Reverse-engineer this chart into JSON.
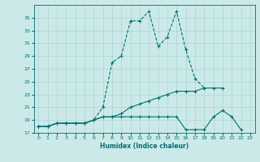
{
  "title": "",
  "xlabel": "Humidex (Indice chaleur)",
  "bg_color": "#cce9e9",
  "grid_color": "#aad4d4",
  "line_color": "#007070",
  "ylim": [
    17,
    37
  ],
  "xlim": [
    -0.5,
    23.5
  ],
  "yticks": [
    17,
    19,
    21,
    23,
    25,
    27,
    29,
    31,
    33,
    35
  ],
  "xticks": [
    0,
    1,
    2,
    3,
    4,
    5,
    6,
    7,
    8,
    9,
    10,
    11,
    12,
    13,
    14,
    15,
    16,
    17,
    18,
    19,
    20,
    21,
    22,
    23
  ],
  "series": [
    {
      "x": [
        0,
        1,
        2,
        3,
        4,
        5,
        6,
        7,
        8,
        9,
        10,
        11,
        12,
        13,
        14,
        15,
        16,
        17,
        18
      ],
      "y": [
        18.0,
        18.0,
        18.5,
        18.5,
        18.5,
        18.5,
        19.0,
        21.0,
        28.0,
        29.0,
        34.5,
        34.5,
        36.0,
        30.5,
        32.0,
        36.0,
        30.0,
        25.5,
        24.0
      ],
      "style": "--",
      "lw": 0.8
    },
    {
      "x": [
        0,
        1,
        2,
        3,
        4,
        5,
        6,
        7,
        8,
        9,
        10,
        11,
        12,
        13,
        14,
        15,
        16,
        17,
        18,
        19,
        20
      ],
      "y": [
        18.0,
        18.0,
        18.5,
        18.5,
        18.5,
        18.5,
        19.0,
        19.5,
        19.5,
        20.0,
        21.0,
        21.5,
        22.0,
        22.5,
        23.0,
        23.5,
        23.5,
        23.5,
        24.0,
        24.0,
        24.0
      ],
      "style": "-",
      "lw": 0.8
    },
    {
      "x": [
        0,
        1,
        2,
        3,
        4,
        5,
        6,
        7,
        8,
        9,
        10,
        11,
        12,
        13,
        14,
        15,
        16,
        17,
        18,
        19,
        20,
        21,
        22
      ],
      "y": [
        18.0,
        18.0,
        18.5,
        18.5,
        18.5,
        18.5,
        19.0,
        19.5,
        19.5,
        19.5,
        19.5,
        19.5,
        19.5,
        19.5,
        19.5,
        19.5,
        17.5,
        17.5,
        17.5,
        19.5,
        20.5,
        19.5,
        17.5
      ],
      "style": "-",
      "lw": 0.8
    }
  ]
}
